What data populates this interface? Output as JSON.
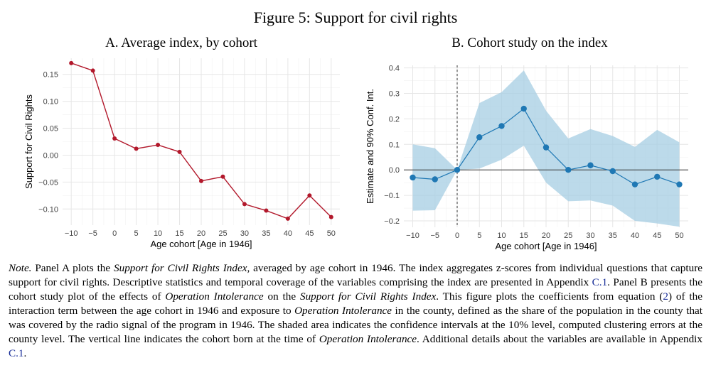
{
  "figure_title": "Figure 5: Support for civil rights",
  "chart_data": [
    {
      "type": "line",
      "title": "A. Average index, by cohort",
      "xlabel": "Age cohort [Age in 1946]",
      "ylabel": "Support for Civil Rights",
      "x": [
        -10,
        -5,
        0,
        5,
        10,
        15,
        20,
        25,
        30,
        35,
        40,
        45,
        50
      ],
      "x_tick_labels": [
        "−10",
        "−5",
        "0",
        "5",
        "10",
        "15",
        "20",
        "25",
        "30",
        "35",
        "40",
        "45",
        "50"
      ],
      "y_ticks": [
        0.15,
        0.1,
        0.05,
        0.0,
        -0.05,
        -0.1
      ],
      "y_tick_labels": [
        "0.15",
        "0.10",
        "0.05",
        "0.00",
        "−0.05",
        "−0.10"
      ],
      "series": [
        {
          "values": [
            0.171,
            0.157,
            0.031,
            0.012,
            0.019,
            0.006,
            -0.048,
            -0.04,
            -0.091,
            -0.103,
            -0.118,
            -0.075,
            -0.115
          ],
          "color": "#b2182b"
        }
      ],
      "xlim": [
        -12,
        52
      ],
      "ylim": [
        -0.13,
        0.18
      ],
      "grid": true
    },
    {
      "type": "line",
      "title": "B. Cohort study on the index",
      "xlabel": "Age cohort [Age in 1946]",
      "ylabel": "Estimate and 90% Conf. Int.",
      "x": [
        -10,
        -5,
        0,
        5,
        10,
        15,
        20,
        25,
        30,
        35,
        40,
        45,
        50
      ],
      "x_tick_labels": [
        "−10",
        "−5",
        "0",
        "5",
        "10",
        "15",
        "20",
        "25",
        "30",
        "35",
        "40",
        "45",
        "50"
      ],
      "y_ticks": [
        0.4,
        0.3,
        0.2,
        0.1,
        0.0,
        -0.1,
        -0.2
      ],
      "y_tick_labels": [
        "0.4",
        "0.3",
        "0.2",
        "0.1",
        "0.0",
        "−0.1",
        "−0.2"
      ],
      "series": [
        {
          "values": [
            -0.03,
            -0.037,
            0.0,
            0.128,
            0.172,
            0.24,
            0.088,
            0.0,
            0.018,
            -0.005,
            -0.057,
            -0.027,
            -0.057
          ],
          "ci_lower": [
            -0.16,
            -0.158,
            0.0,
            0.005,
            0.04,
            0.095,
            -0.05,
            -0.123,
            -0.12,
            -0.14,
            -0.2,
            -0.21,
            -0.223
          ],
          "ci_upper": [
            0.1,
            0.085,
            0.0,
            0.262,
            0.305,
            0.39,
            0.232,
            0.123,
            0.16,
            0.133,
            0.09,
            0.157,
            0.108
          ],
          "color": "#1f78b4",
          "ci_color": "#a6cee3"
        }
      ],
      "reference_lines": {
        "horizontal_y": 0,
        "vertical_x": 0
      },
      "xlim": [
        -12,
        52
      ],
      "ylim": [
        -0.225,
        0.41
      ],
      "grid": true
    }
  ],
  "note": {
    "label": "Note.",
    "seg1": " Panel A plots the ",
    "em1": "Support for Civil Rights Index",
    "seg2": ", averaged by age cohort in 1946. The index aggregates z-scores from individual questions that capture support for civil rights. Descriptive statistics and temporal coverage of the variables comprising the index are presented in Appendix ",
    "ref1": "C.1",
    "seg3": ". Panel B presents the cohort study plot of the effects of ",
    "em2": "Operation Intolerance",
    "seg4": " on the ",
    "em3": "Support for Civil Rights Index",
    "seg5": ". This figure plots the coefficients from equation (",
    "ref2": "2",
    "seg6": ") of the interaction term between the age cohort in 1946 and exposure to ",
    "em4": "Operation Intolerance",
    "seg7": " in the county, defined as the share of the population in the county that was covered by the radio signal of the program in 1946. The shaded area indicates the confidence intervals at the 10% level, computed clustering errors at the county level. The vertical line indicates the cohort born at the time of ",
    "em5": "Operation Intolerance",
    "seg8": ". Additional details about the variables are available in Appendix ",
    "ref3": "C.1",
    "seg9": "."
  }
}
